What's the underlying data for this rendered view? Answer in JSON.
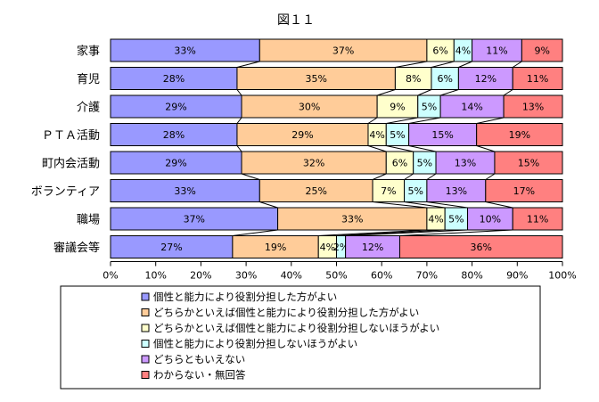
{
  "chart_data": {
    "type": "bar",
    "orientation": "horizontal",
    "stacked": "percent",
    "title": "図１１",
    "categories": [
      "家事",
      "育児",
      "介護",
      "ＰＴＡ活動",
      "町内会活動",
      "ボランティア",
      "職場",
      "審議会等"
    ],
    "series": [
      {
        "name": "個性と能力により役割分担した方がよい",
        "color": "#9999ff",
        "values": [
          33,
          28,
          29,
          28,
          29,
          33,
          37,
          27
        ]
      },
      {
        "name": "どちらかといえば個性と能力により役割分担した方がよい",
        "color": "#ffcc99",
        "values": [
          37,
          35,
          30,
          29,
          32,
          25,
          33,
          19
        ]
      },
      {
        "name": "どちらかといえば個性と能力により役割分担しないほうがよい",
        "color": "#ffffcc",
        "values": [
          6,
          8,
          9,
          4,
          6,
          7,
          4,
          4
        ]
      },
      {
        "name": "個性と能力により役割分担しないほうがよい",
        "color": "#ccffff",
        "values": [
          4,
          6,
          5,
          5,
          5,
          5,
          5,
          2
        ]
      },
      {
        "name": "どちらともいえない",
        "color": "#cc99ff",
        "values": [
          11,
          12,
          14,
          15,
          13,
          13,
          10,
          12
        ]
      },
      {
        "name": "わからない・無回答",
        "color": "#ff8080",
        "values": [
          9,
          11,
          13,
          19,
          15,
          17,
          11,
          36
        ]
      }
    ],
    "xlim": [
      0,
      100
    ],
    "x_ticks": [
      "0%",
      "10%",
      "20%",
      "30%",
      "40%",
      "50%",
      "60%",
      "70%",
      "80%",
      "90%",
      "100%"
    ],
    "grid": false,
    "legend_position": "bottom"
  }
}
